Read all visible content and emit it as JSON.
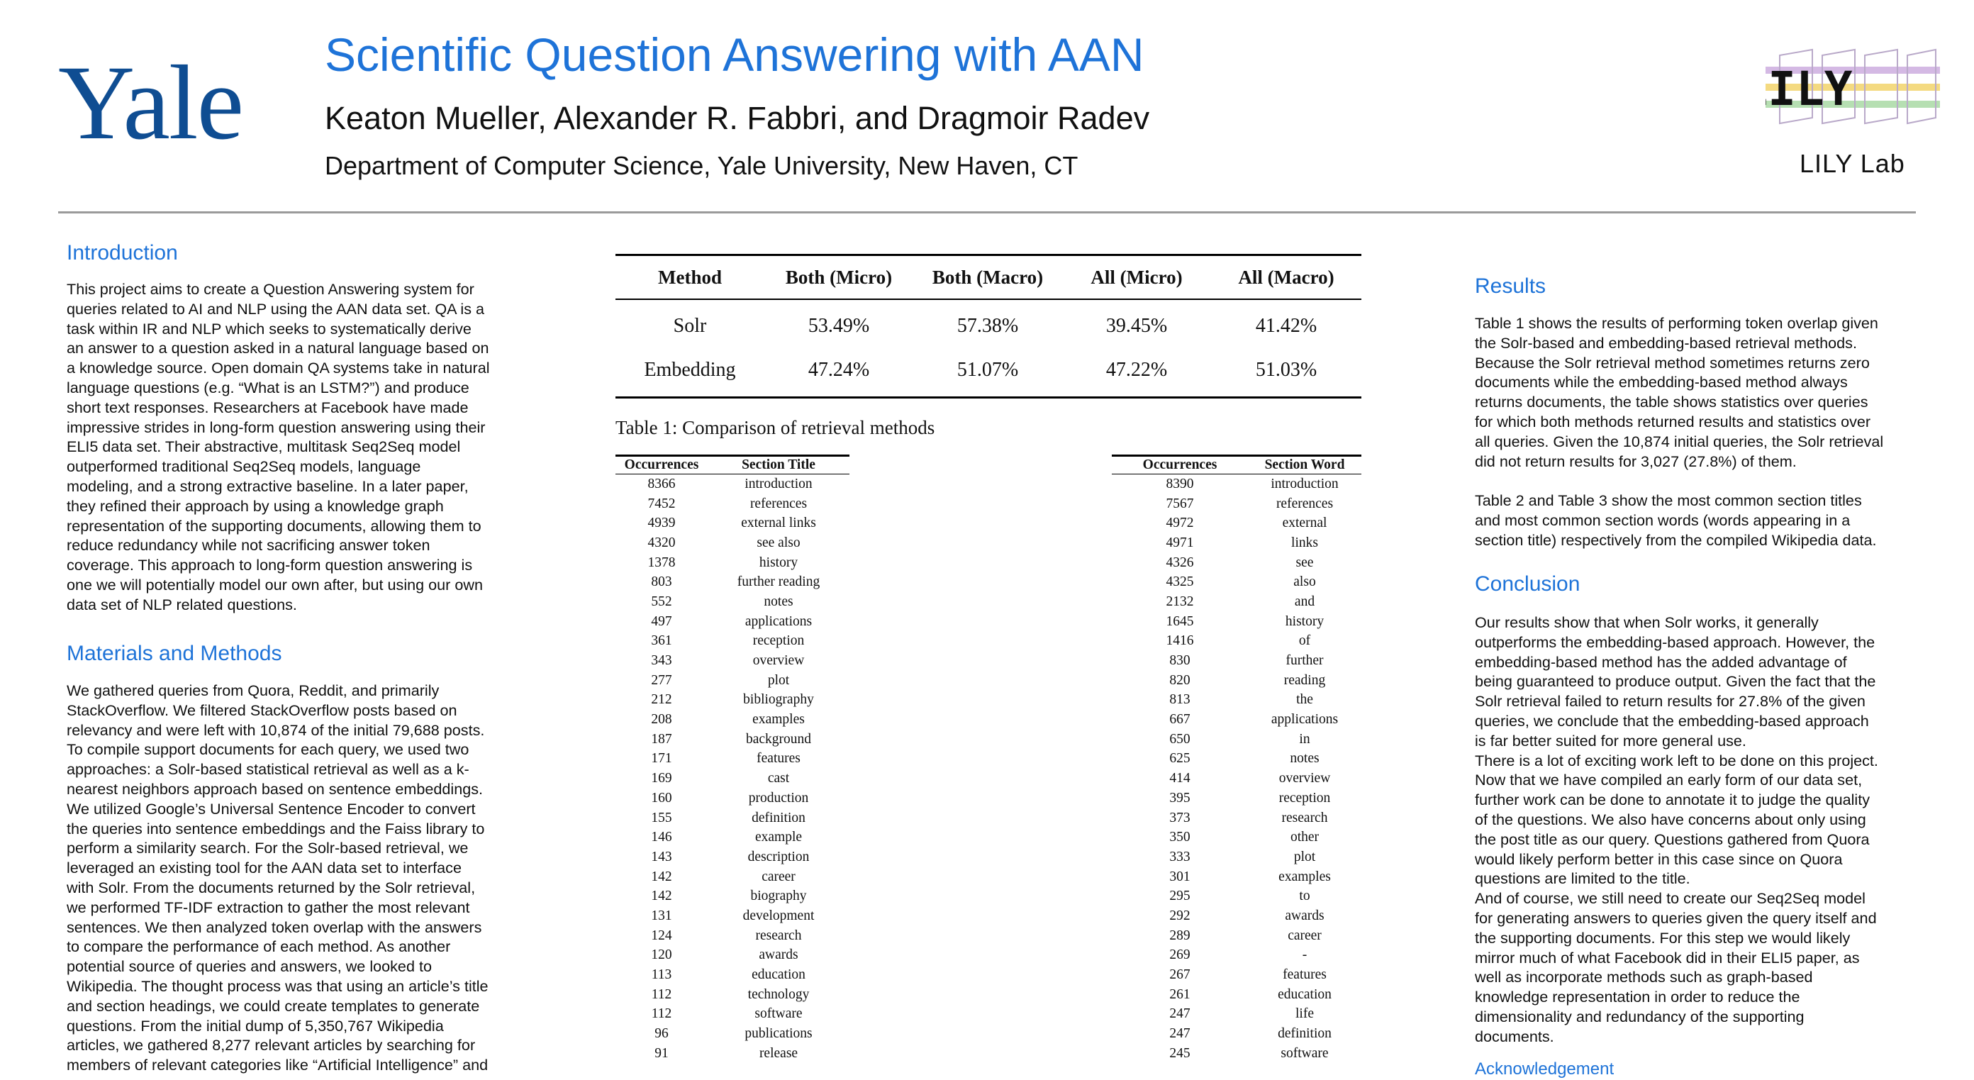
{
  "header": {
    "logo_text": "Yale",
    "title": "Scientific Question Answering with AAN",
    "authors": "Keaton Mueller, Alexander R. Fabbri, and Dragmoir Radev",
    "affiliation": "Department of Computer Science, Yale University, New Haven, CT",
    "lab_logo_text": "LILY",
    "lab_name": "LILY Lab"
  },
  "introduction": {
    "heading": "Introduction",
    "text": "This project aims to create a Question Answering system for\nqueries related to AI and NLP using the AAN data set. QA is a\ntask within IR and NLP which seeks to systematically derive\nan answer to a question asked in a natural language based on\na knowledge source. Open domain QA systems take in natural\nlanguage questions (e.g. “What is an LSTM?”) and produce\nshort text responses. Researchers at Facebook have made\nimpressive strides in long-form question answering using their\nELI5 data set. Their abstractive, multitask Seq2Seq model\noutperformed traditional Seq2Seq models, language\nmodeling, and a strong extractive baseline. In a later paper,\nthey refined their approach by using a knowledge graph\nrepresentation of the supporting documents, allowing them to\nreduce redundancy while not sacrificing answer token\ncoverage. This approach to long-form question answering is\none we will potentially model our own after, but using our own\ndata set of NLP related questions."
  },
  "methods": {
    "heading": "Materials and Methods",
    "text": "We gathered queries from Quora, Reddit, and primarily\nStackOverflow. We filtered StackOverflow posts based on\nrelevancy and were left with 10,874 of the initial 79,688 posts.\nTo compile support documents for each query, we used two\napproaches: a Solr-based statistical retrieval as well as a k-\nnearest neighbors approach based on sentence embeddings.\nWe utilized Google’s Universal Sentence Encoder to convert\nthe queries into sentence embeddings and the Faiss library to\nperform a similarity search. For the Solr-based retrieval, we\nleveraged an existing tool for the AAN data set to interface\nwith Solr. From the documents returned by the Solr retrieval,\nwe performed TF-IDF extraction to gather the most relevant\nsentences. We then analyzed token overlap with the answers\nto compare the performance of each method.  As another\npotential source of queries and answers, we looked to\nWikipedia. The thought process was that using an article’s title\nand section headings, we could create templates to generate\nquestions. From the initial dump of 5,350,767 Wikipedia\narticles, we gathered 8,277 relevant articles by searching for\nmembers of relevant categories like “Artificial Intelligence” and"
  },
  "table1": {
    "headers": [
      "Method",
      "Both (Micro)",
      "Both (Macro)",
      "All (Micro)",
      "All (Macro)"
    ],
    "rows": [
      [
        "Solr",
        "53.49%",
        "57.38%",
        "39.45%",
        "41.42%"
      ],
      [
        "Embedding",
        "47.24%",
        "51.07%",
        "47.22%",
        "51.03%"
      ]
    ],
    "caption": "Table 1: Comparison of retrieval methods"
  },
  "table2": {
    "headers": [
      "Occurrences",
      "Section Title"
    ],
    "rows": [
      [
        "8366",
        "introduction"
      ],
      [
        "7452",
        "references"
      ],
      [
        "4939",
        "external links"
      ],
      [
        "4320",
        "see also"
      ],
      [
        "1378",
        "history"
      ],
      [
        "803",
        "further reading"
      ],
      [
        "552",
        "notes"
      ],
      [
        "497",
        "applications"
      ],
      [
        "361",
        "reception"
      ],
      [
        "343",
        "overview"
      ],
      [
        "277",
        "plot"
      ],
      [
        "212",
        "bibliography"
      ],
      [
        "208",
        "examples"
      ],
      [
        "187",
        "background"
      ],
      [
        "171",
        "features"
      ],
      [
        "169",
        "cast"
      ],
      [
        "160",
        "production"
      ],
      [
        "155",
        "definition"
      ],
      [
        "146",
        "example"
      ],
      [
        "143",
        "description"
      ],
      [
        "142",
        "career"
      ],
      [
        "142",
        "biography"
      ],
      [
        "131",
        "development"
      ],
      [
        "124",
        "research"
      ],
      [
        "120",
        "awards"
      ],
      [
        "113",
        "education"
      ],
      [
        "112",
        "technology"
      ],
      [
        "112",
        "software"
      ],
      [
        "96",
        "publications"
      ],
      [
        "91",
        "release"
      ]
    ]
  },
  "table3": {
    "headers": [
      "Occurrences",
      "Section Word"
    ],
    "rows": [
      [
        "8390",
        "introduction"
      ],
      [
        "7567",
        "references"
      ],
      [
        "4972",
        "external"
      ],
      [
        "4971",
        "links"
      ],
      [
        "4326",
        "see"
      ],
      [
        "4325",
        "also"
      ],
      [
        "2132",
        "and"
      ],
      [
        "1645",
        "history"
      ],
      [
        "1416",
        "of"
      ],
      [
        "830",
        "further"
      ],
      [
        "820",
        "reading"
      ],
      [
        "813",
        "the"
      ],
      [
        "667",
        "applications"
      ],
      [
        "650",
        "in"
      ],
      [
        "625",
        "notes"
      ],
      [
        "414",
        "overview"
      ],
      [
        "395",
        "reception"
      ],
      [
        "373",
        "research"
      ],
      [
        "350",
        "other"
      ],
      [
        "333",
        "plot"
      ],
      [
        "301",
        "examples"
      ],
      [
        "295",
        "to"
      ],
      [
        "292",
        "awards"
      ],
      [
        "289",
        "career"
      ],
      [
        "269",
        "-"
      ],
      [
        "267",
        "features"
      ],
      [
        "261",
        "education"
      ],
      [
        "247",
        "life"
      ],
      [
        "247",
        "definition"
      ],
      [
        "245",
        "software"
      ]
    ]
  },
  "results": {
    "heading": "Results",
    "text1": "Table 1 shows the results of performing token overlap given\nthe Solr-based and embedding-based retrieval methods.\nBecause the Solr retrieval method sometimes returns zero\ndocuments while the embedding-based method always\nreturns documents, the table shows statistics over queries\nfor which both methods returned results and statistics over\nall queries. Given the 10,874 initial queries, the Solr retrieval\ndid not return results for 3,027 (27.8%) of them.",
    "text2": "Table 2 and Table 3 show the most common section titles\nand most common section words (words appearing in a\nsection title) respectively from the compiled Wikipedia data."
  },
  "conclusion": {
    "heading": "Conclusion",
    "text": "Our results show that when Solr works, it generally\noutperforms the embedding-based approach. However, the\nembedding-based method has the added advantage of\nbeing guaranteed to produce output. Given the fact that the\nSolr retrieval failed to return results for 27.8% of the given\nqueries, we conclude that the embedding-based approach\nis far better suited for more general use.\nThere is a lot of exciting work left to be done on this project.\nNow that we have compiled an early form of our data set,\nfurther work can be done to annotate it to judge the quality\nof the questions. We also have concerns about only using\nthe post title as our query. Questions gathered from Quora\nwould likely perform better in this case since on Quora\nquestions are limited to the title.\nAnd of course, we still need to create our Seq2Seq model\nfor generating answers to queries given the query itself and\nthe supporting documents. For this step we would likely\nmirror much of what Facebook did in their ELI5 paper, as\nwell as incorporate methods such as graph-based\nknowledge representation in order to reduce the\ndimensionality and redundancy of the supporting\ndocuments."
  },
  "acknowledgement": {
    "heading": "Acknowledgement"
  },
  "colors": {
    "heading_blue": "#1e73d8",
    "yale_blue": "#0f4d92"
  }
}
